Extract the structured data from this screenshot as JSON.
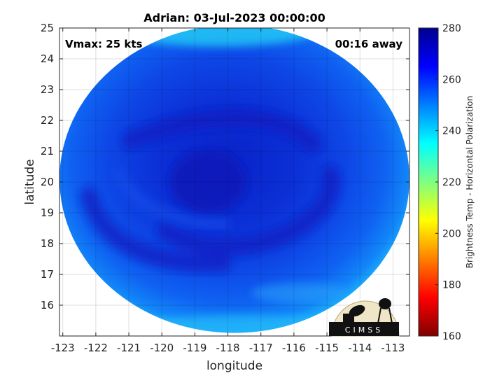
{
  "chart_data": {
    "type": "heatmap",
    "title": "Adrian: 03-Jul-2023 00:00:00",
    "xlabel": "longitude",
    "ylabel": "latitude",
    "xlim": [
      -123.1,
      -112.5
    ],
    "ylim": [
      15,
      25
    ],
    "x_ticks": [
      "-123",
      "-122",
      "-121",
      "-120",
      "-119",
      "-118",
      "-117",
      "-116",
      "-115",
      "-114",
      "-113"
    ],
    "x_tick_values": [
      -123,
      -122,
      -121,
      -120,
      -119,
      -118,
      -117,
      -116,
      -115,
      -114,
      -113
    ],
    "y_ticks": [
      "16",
      "17",
      "18",
      "19",
      "20",
      "21",
      "22",
      "23",
      "24",
      "25"
    ],
    "y_tick_values": [
      16,
      17,
      18,
      19,
      20,
      21,
      22,
      23,
      24,
      25
    ],
    "grid": true,
    "annotations": {
      "vmax": "Vmax: 25 kts",
      "time_away": "00:16 away"
    },
    "storm_center": {
      "lon": -118.6,
      "lat": 20.0
    },
    "swath": {
      "center_lon": -117.8,
      "center_lat": 20.1,
      "radius_lon": 5.3,
      "radius_lat": 5.0
    },
    "colorbar": {
      "label": "Brightness Temp - Horizontal Polarization",
      "min": 160,
      "max": 280,
      "ticks": [
        "160",
        "180",
        "200",
        "220",
        "240",
        "260",
        "280"
      ],
      "tick_values": [
        160,
        180,
        200,
        220,
        240,
        260,
        280
      ],
      "colormap": "jet"
    },
    "value_levels": {
      "outer_band": 245,
      "middle": 258,
      "core": 266
    }
  },
  "logo": {
    "text": "CIMSS"
  }
}
